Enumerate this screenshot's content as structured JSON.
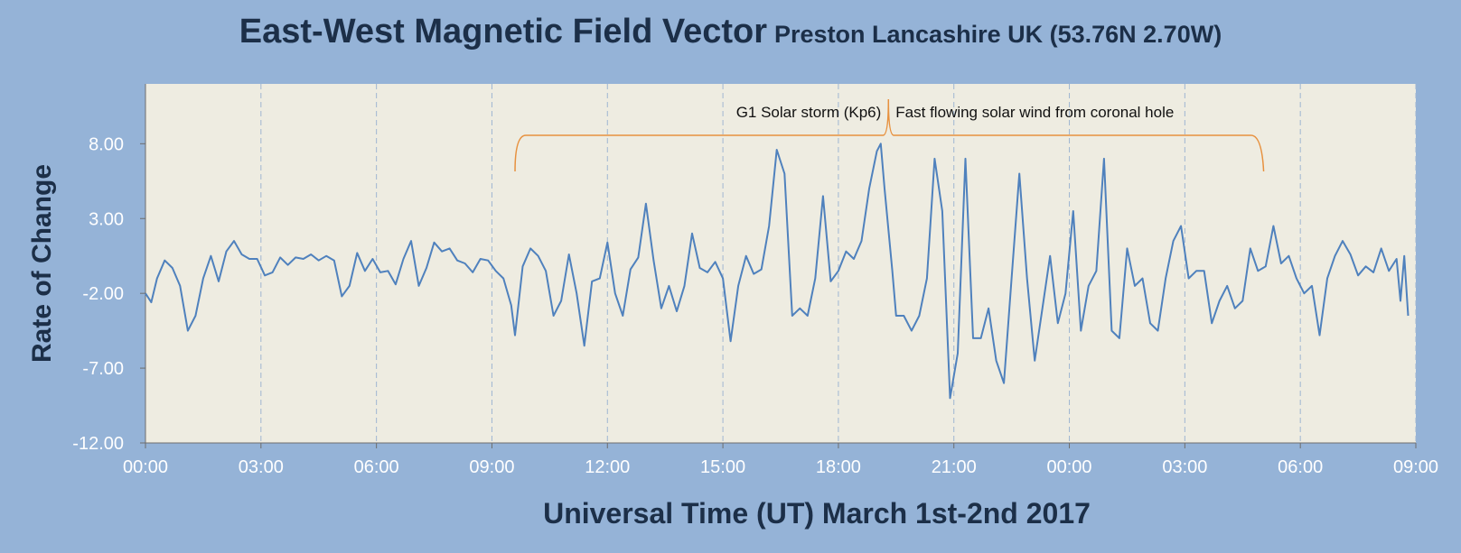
{
  "colors": {
    "background": "#95b3d7",
    "plot_area": "#eeece1",
    "series": "#4f81bd",
    "brace": "#e7913f",
    "gridline": "#9fb6d2",
    "title": "#1c2f48",
    "tick_text": "#ffffff"
  },
  "chart_data": {
    "type": "line",
    "title": "East-West Magnetic Field Vector",
    "subtitle": "Preston Lancashire UK (53.76N 2.70W)",
    "xlabel": "Universal Time (UT) March 1st-2nd 2017",
    "ylabel": "Rate of Change",
    "x_unit": "hours since 00:00 UT March 1st 2017",
    "xlim": [
      0,
      33
    ],
    "ylim": [
      -12,
      12
    ],
    "y_ticks": [
      "8.00",
      "3.00",
      "-2.00",
      "-7.00",
      "-12.00"
    ],
    "y_tick_values": [
      8,
      3,
      -2,
      -7,
      -12
    ],
    "x_ticks": [
      "00:00",
      "03:00",
      "06:00",
      "09:00",
      "12:00",
      "15:00",
      "18:00",
      "21:00",
      "00:00",
      "03:00",
      "06:00",
      "09:00"
    ],
    "x_tick_values": [
      0,
      3,
      6,
      9,
      12,
      15,
      18,
      21,
      24,
      27,
      30,
      33
    ],
    "grid": "vertical dashed at each x tick",
    "legend": "none",
    "annotations": [
      {
        "text": "G1 Solar storm (Kp6)",
        "x": 19.0
      },
      {
        "text": "Fast flowing solar wind from coronal hole",
        "x": 19.3
      }
    ],
    "brace": {
      "x_start": 9.6,
      "x_end": 29.0,
      "peak_x": 19.3
    },
    "series": [
      {
        "name": "East-West",
        "points": [
          [
            0.0,
            -2.0
          ],
          [
            0.15,
            -2.6
          ],
          [
            0.3,
            -1.0
          ],
          [
            0.5,
            0.2
          ],
          [
            0.7,
            -0.3
          ],
          [
            0.9,
            -1.5
          ],
          [
            1.1,
            -4.5
          ],
          [
            1.3,
            -3.5
          ],
          [
            1.5,
            -1.0
          ],
          [
            1.7,
            0.5
          ],
          [
            1.9,
            -1.2
          ],
          [
            2.1,
            0.8
          ],
          [
            2.3,
            1.5
          ],
          [
            2.5,
            0.6
          ],
          [
            2.7,
            0.3
          ],
          [
            2.9,
            0.3
          ],
          [
            3.1,
            -0.8
          ],
          [
            3.3,
            -0.6
          ],
          [
            3.5,
            0.4
          ],
          [
            3.7,
            -0.1
          ],
          [
            3.9,
            0.4
          ],
          [
            4.1,
            0.3
          ],
          [
            4.3,
            0.6
          ],
          [
            4.5,
            0.2
          ],
          [
            4.7,
            0.5
          ],
          [
            4.9,
            0.2
          ],
          [
            5.1,
            -2.2
          ],
          [
            5.3,
            -1.5
          ],
          [
            5.5,
            0.7
          ],
          [
            5.7,
            -0.5
          ],
          [
            5.9,
            0.3
          ],
          [
            6.1,
            -0.6
          ],
          [
            6.3,
            -0.5
          ],
          [
            6.5,
            -1.4
          ],
          [
            6.7,
            0.3
          ],
          [
            6.9,
            1.5
          ],
          [
            7.1,
            -1.5
          ],
          [
            7.3,
            -0.3
          ],
          [
            7.5,
            1.4
          ],
          [
            7.7,
            0.8
          ],
          [
            7.9,
            1.0
          ],
          [
            8.1,
            0.2
          ],
          [
            8.3,
            0.0
          ],
          [
            8.5,
            -0.6
          ],
          [
            8.7,
            0.3
          ],
          [
            8.9,
            0.2
          ],
          [
            9.1,
            -0.5
          ],
          [
            9.3,
            -1.0
          ],
          [
            9.5,
            -2.8
          ],
          [
            9.6,
            -4.8
          ],
          [
            9.8,
            -0.2
          ],
          [
            10.0,
            1.0
          ],
          [
            10.2,
            0.5
          ],
          [
            10.4,
            -0.5
          ],
          [
            10.6,
            -3.5
          ],
          [
            10.8,
            -2.5
          ],
          [
            11.0,
            0.6
          ],
          [
            11.2,
            -2.0
          ],
          [
            11.4,
            -5.5
          ],
          [
            11.6,
            -1.2
          ],
          [
            11.8,
            -1.0
          ],
          [
            12.0,
            1.4
          ],
          [
            12.2,
            -2.0
          ],
          [
            12.4,
            -3.5
          ],
          [
            12.6,
            -0.4
          ],
          [
            12.8,
            0.4
          ],
          [
            13.0,
            4.0
          ],
          [
            13.2,
            0.2
          ],
          [
            13.4,
            -3.0
          ],
          [
            13.6,
            -1.5
          ],
          [
            13.8,
            -3.2
          ],
          [
            14.0,
            -1.5
          ],
          [
            14.2,
            2.0
          ],
          [
            14.4,
            -0.3
          ],
          [
            14.6,
            -0.6
          ],
          [
            14.8,
            0.1
          ],
          [
            15.0,
            -1.0
          ],
          [
            15.2,
            -5.2
          ],
          [
            15.4,
            -1.5
          ],
          [
            15.6,
            0.5
          ],
          [
            15.8,
            -0.7
          ],
          [
            16.0,
            -0.4
          ],
          [
            16.2,
            2.5
          ],
          [
            16.4,
            7.6
          ],
          [
            16.6,
            6.0
          ],
          [
            16.8,
            -3.5
          ],
          [
            17.0,
            -3.0
          ],
          [
            17.2,
            -3.5
          ],
          [
            17.4,
            -1.0
          ],
          [
            17.6,
            4.5
          ],
          [
            17.8,
            -1.2
          ],
          [
            18.0,
            -0.5
          ],
          [
            18.2,
            0.8
          ],
          [
            18.4,
            0.3
          ],
          [
            18.6,
            1.5
          ],
          [
            18.8,
            5.0
          ],
          [
            19.0,
            7.5
          ],
          [
            19.1,
            8.0
          ],
          [
            19.2,
            5.0
          ],
          [
            19.4,
            -0.5
          ],
          [
            19.5,
            -3.5
          ],
          [
            19.7,
            -3.5
          ],
          [
            19.9,
            -4.5
          ],
          [
            20.1,
            -3.5
          ],
          [
            20.3,
            -1.0
          ],
          [
            20.5,
            7.0
          ],
          [
            20.7,
            3.5
          ],
          [
            20.9,
            -9.0
          ],
          [
            21.1,
            -6.0
          ],
          [
            21.3,
            7.0
          ],
          [
            21.5,
            -5.0
          ],
          [
            21.7,
            -5.0
          ],
          [
            21.9,
            -3.0
          ],
          [
            22.1,
            -6.5
          ],
          [
            22.3,
            -8.0
          ],
          [
            22.5,
            -1.0
          ],
          [
            22.7,
            6.0
          ],
          [
            22.9,
            -1.0
          ],
          [
            23.1,
            -6.5
          ],
          [
            23.3,
            -3.0
          ],
          [
            23.5,
            0.5
          ],
          [
            23.7,
            -4.0
          ],
          [
            23.9,
            -2.0
          ],
          [
            24.1,
            3.5
          ],
          [
            24.3,
            -4.5
          ],
          [
            24.5,
            -1.5
          ],
          [
            24.7,
            -0.5
          ],
          [
            24.9,
            7.0
          ],
          [
            25.1,
            -4.5
          ],
          [
            25.3,
            -5.0
          ],
          [
            25.5,
            1.0
          ],
          [
            25.7,
            -1.5
          ],
          [
            25.9,
            -1.0
          ],
          [
            26.1,
            -4.0
          ],
          [
            26.3,
            -4.5
          ],
          [
            26.5,
            -1.0
          ],
          [
            26.7,
            1.5
          ],
          [
            26.9,
            2.5
          ],
          [
            27.1,
            -1.0
          ],
          [
            27.3,
            -0.5
          ],
          [
            27.5,
            -0.5
          ],
          [
            27.7,
            -4.0
          ],
          [
            27.9,
            -2.5
          ],
          [
            28.1,
            -1.5
          ],
          [
            28.3,
            -3.0
          ],
          [
            28.5,
            -2.5
          ],
          [
            28.7,
            1.0
          ],
          [
            28.9,
            -0.5
          ],
          [
            29.1,
            -0.2
          ],
          [
            29.3,
            2.5
          ],
          [
            29.5,
            0.0
          ],
          [
            29.7,
            0.5
          ],
          [
            29.9,
            -1.0
          ],
          [
            30.1,
            -2.0
          ],
          [
            30.3,
            -1.5
          ],
          [
            30.5,
            -4.8
          ],
          [
            30.7,
            -1.0
          ],
          [
            30.9,
            0.5
          ],
          [
            31.1,
            1.5
          ],
          [
            31.3,
            0.6
          ],
          [
            31.5,
            -0.8
          ],
          [
            31.7,
            -0.2
          ],
          [
            31.9,
            -0.6
          ],
          [
            32.1,
            1.0
          ],
          [
            32.3,
            -0.5
          ],
          [
            32.5,
            0.3
          ],
          [
            32.6,
            -2.5
          ],
          [
            32.7,
            0.5
          ],
          [
            32.8,
            -3.5
          ]
        ]
      }
    ]
  }
}
